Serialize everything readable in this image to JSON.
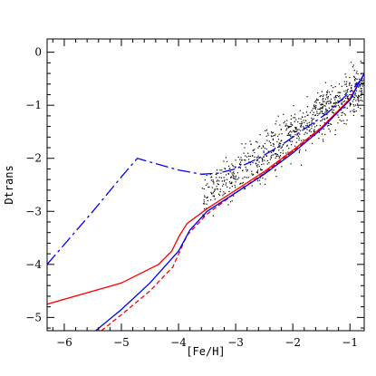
{
  "chart_data": {
    "type": "line",
    "title": "",
    "xlabel": "[Fe/H]",
    "ylabel": "Dtrans",
    "xlim": [
      -6.3,
      -0.75
    ],
    "ylim": [
      -5.25,
      0.25
    ],
    "x_ticks": [
      -6,
      -5,
      -4,
      -3,
      -2,
      -1
    ],
    "y_ticks": [
      0,
      -1,
      -2,
      -3,
      -4,
      -5
    ],
    "x_tick_labels": [
      "−6",
      "−5",
      "−4",
      "−3",
      "−2",
      "−1"
    ],
    "y_tick_labels": [
      "0",
      "−1",
      "−2",
      "−3",
      "−4",
      "−5"
    ],
    "grid": false,
    "series": [
      {
        "color": "#ff0000",
        "style": "solid",
        "x": [
          -6.3,
          -5.0,
          -4.35,
          -4.12,
          -3.98,
          -3.85,
          -3.5,
          -3.0,
          -2.5,
          -2.0,
          -1.5,
          -1.0,
          -0.75
        ],
        "y": [
          -4.75,
          -4.35,
          -4.0,
          -3.75,
          -3.45,
          -3.23,
          -2.95,
          -2.6,
          -2.25,
          -1.85,
          -1.42,
          -0.88,
          -0.4
        ]
      },
      {
        "color": "#ff0000",
        "style": "dashed",
        "x": [
          -5.35,
          -5.0,
          -4.5,
          -4.1,
          -3.85,
          -3.5,
          -3.0,
          -2.5,
          -2.0,
          -1.5,
          -1.0,
          -0.75
        ],
        "y": [
          -5.25,
          -4.95,
          -4.5,
          -4.05,
          -3.45,
          -3.05,
          -2.65,
          -2.28,
          -1.87,
          -1.43,
          -0.88,
          -0.4
        ]
      },
      {
        "color": "#0000ff",
        "style": "solid",
        "x": [
          -5.45,
          -5.0,
          -4.5,
          -4.0,
          -3.8,
          -3.5,
          -3.0,
          -2.5,
          -2.0,
          -1.5,
          -1.0,
          -0.75
        ],
        "y": [
          -5.25,
          -4.85,
          -4.35,
          -3.75,
          -3.35,
          -3.0,
          -2.65,
          -2.3,
          -1.9,
          -1.45,
          -0.9,
          -0.4
        ]
      },
      {
        "color": "#0000ff",
        "style": "long-dash",
        "x": [
          -6.3,
          -5.5,
          -5.0,
          -4.72,
          -4.4,
          -4.0,
          -3.6,
          -3.3,
          -3.0,
          -2.6,
          -2.2,
          -1.8,
          -1.4,
          -1.0,
          -0.75
        ],
        "y": [
          -4.0,
          -3.0,
          -2.35,
          -2.0,
          -2.1,
          -2.22,
          -2.3,
          -2.28,
          -2.2,
          -2.0,
          -1.75,
          -1.45,
          -1.15,
          -0.75,
          -0.45
        ]
      }
    ],
    "scatter": {
      "color": "#000000",
      "x_range": [
        -3.6,
        -0.75
      ],
      "y_range": [
        -3.5,
        0.2
      ]
    }
  }
}
